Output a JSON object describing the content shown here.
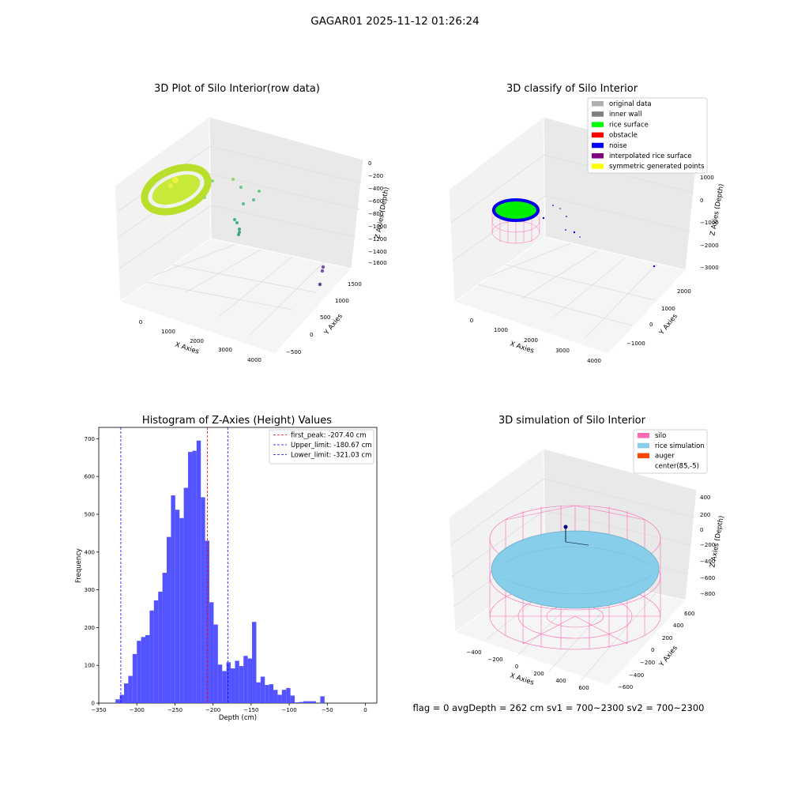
{
  "suptitle": "GAGAR01 2025-11-12 01:26:24",
  "footer": "flag = 0     avgDepth = 262 cm  sv1 = 700~2300  sv2 = 700~2300",
  "colors": {
    "hist_bar": "#5050ff",
    "peak_line": "#ff0000",
    "limit_line": "#0000ff",
    "silo_mesh": "#ff69b4",
    "rice_sim": "#87ceeb",
    "axis_pane": "#f2f2f2",
    "grid": "#dcdcdc"
  },
  "panels": {
    "raw": {
      "title": "3D Plot of Silo Interior(row data)",
      "xlabel": "X Axies",
      "ylabel": "Y Axies",
      "zlabel": "Z Axies (Depth)",
      "xticks": [
        "0",
        "1000",
        "2000",
        "3000",
        "4000"
      ],
      "yticks": [
        "−500",
        "0",
        "500",
        "1000",
        "1500"
      ],
      "zticks": [
        "0",
        "−200",
        "−400",
        "−600",
        "−800",
        "−1000",
        "−1200",
        "−1400",
        "−1600"
      ]
    },
    "classify": {
      "title": "3D classify of Silo Interior",
      "xlabel": "X Axies",
      "ylabel": "Y Axies",
      "zlabel": "Z Axies (Depth)",
      "xticks": [
        "0",
        "1000",
        "2000",
        "3000",
        "4000"
      ],
      "yticks": [
        "−1000",
        "0",
        "1000",
        "2000"
      ],
      "zticks": [
        "1000",
        "0",
        "−1000",
        "−2000",
        "−3000"
      ],
      "legend": [
        {
          "label": "original data",
          "color": "#b0b0b0"
        },
        {
          "label": "inner wall",
          "color": "#808080"
        },
        {
          "label": "rice surface",
          "color": "#00ff00"
        },
        {
          "label": "obstacle",
          "color": "#ff0000"
        },
        {
          "label": "noise",
          "color": "#0000ff"
        },
        {
          "label": "interpolated rice surface",
          "color": "#800080"
        },
        {
          "label": "symmetric generated points",
          "color": "#ffff00"
        }
      ]
    },
    "simulation": {
      "title": "3D simulation of Silo Interior",
      "xlabel": "X Axies",
      "ylabel": "Y Axies",
      "zlabel": "Z Axies (Depth)",
      "xticks": [
        "−400",
        "−200",
        "0",
        "200",
        "400",
        "600"
      ],
      "yticks": [
        "−600",
        "−400",
        "−200",
        "0",
        "200",
        "400",
        "600"
      ],
      "zticks": [
        "400",
        "200",
        "0",
        "−200",
        "−400",
        "−600",
        "−800"
      ],
      "legend": [
        {
          "label": "silo",
          "color": "#ff69b4"
        },
        {
          "label": "rice simulation",
          "color": "#87ceeb"
        },
        {
          "label": "auger",
          "color": "#ff4500"
        },
        {
          "label": "center(85,-5)",
          "color": "#ffffff"
        }
      ]
    }
  },
  "chart_data": {
    "type": "bar",
    "title": "Histogram of Z-Axies (Height) Values",
    "xlabel": "Depth (cm)",
    "ylabel": "Frequency",
    "xlim": [
      -350,
      15
    ],
    "ylim": [
      0,
      730
    ],
    "xticks": [
      -350,
      -300,
      -250,
      -200,
      -150,
      -100,
      -50,
      0
    ],
    "yticks": [
      0,
      100,
      200,
      300,
      400,
      500,
      600,
      700
    ],
    "bin_start": -328,
    "bin_width": 5.6,
    "values": [
      10,
      22,
      52,
      72,
      130,
      165,
      175,
      180,
      245,
      272,
      295,
      345,
      440,
      550,
      512,
      490,
      570,
      665,
      668,
      695,
      545,
      430,
      267,
      208,
      102,
      85,
      108,
      92,
      112,
      98,
      125,
      118,
      215,
      55,
      70,
      48,
      50,
      35,
      22,
      35,
      40,
      20,
      2,
      3,
      5,
      5,
      5,
      0,
      18
    ],
    "vlines": [
      {
        "label": "first_peak: -207.40 cm",
        "x": -207.4,
        "color": "#ff0000"
      },
      {
        "label": "Upper_limit: -180.67 cm",
        "x": -180.67,
        "color": "#0000ff"
      },
      {
        "label": "Lower_limit: -321.03 cm",
        "x": -321.03,
        "color": "#0000ff"
      }
    ],
    "legend_position": "top-right"
  }
}
